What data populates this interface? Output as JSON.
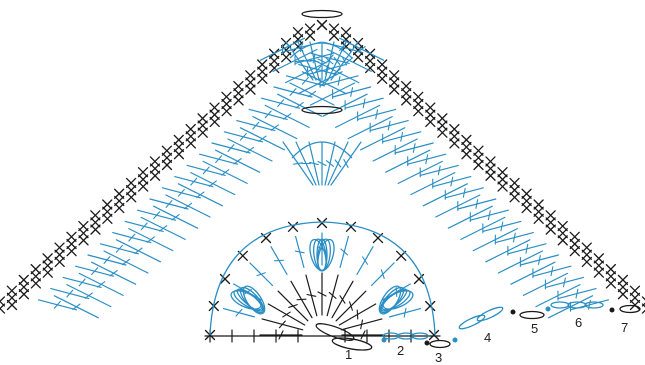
{
  "diagram": {
    "row_labels": [
      "1",
      "2",
      "3",
      "4",
      "5",
      "6",
      "7"
    ],
    "colors": {
      "black_stitches": "#1a1a1a",
      "blue_stitches": "#2a8fc4",
      "background": "#ffffff"
    }
  }
}
